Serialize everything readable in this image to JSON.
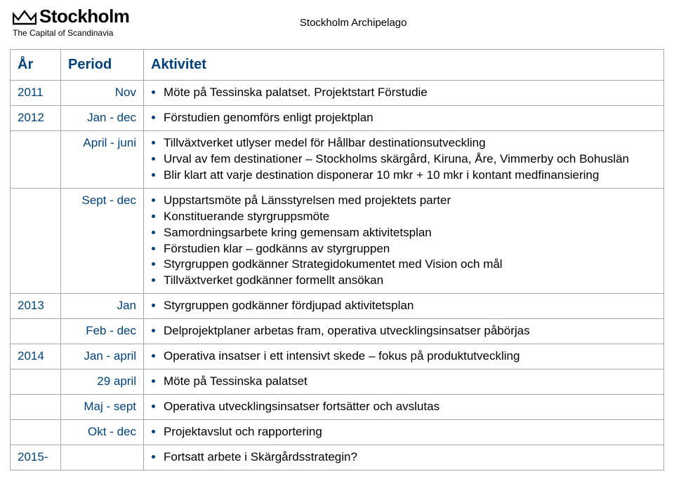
{
  "logo": {
    "word": "Stockholm",
    "tagline": "The Capital of Scandinavia"
  },
  "pageTitle": "Stockholm Archipelago",
  "colors": {
    "brand": "#00417a",
    "text": "#000000",
    "border": "#a8a8a8"
  },
  "table": {
    "headers": {
      "year": "År",
      "period": "Period",
      "activity": "Aktivitet"
    },
    "rows": [
      {
        "year": "2011",
        "period": "Nov",
        "items": [
          "Möte på Tessinska palatset. Projektstart Förstudie"
        ]
      },
      {
        "year": "2012",
        "period": "Jan - dec",
        "items": [
          "Förstudien genomförs enligt projektplan"
        ]
      },
      {
        "year": "",
        "period": "April - juni",
        "items": [
          "Tillväxtverket utlyser medel för Hållbar destinationsutveckling",
          "Urval av fem destinationer – Stockholms skärgård, Kiruna, Åre, Vimmerby och Bohuslän",
          "Blir klart att varje destination disponerar 10 mkr + 10 mkr i kontant medfinansiering"
        ]
      },
      {
        "year": "",
        "period": "Sept - dec",
        "items": [
          "Uppstartsmöte på Länsstyrelsen med projektets parter",
          "Konstituerande styrgruppsmöte",
          "Samordningsarbete kring gemensam aktivitetsplan",
          "Förstudien klar – godkänns av styrgruppen",
          "Styrgruppen godkänner Strategidokumentet med Vision och mål",
          "Tillväxtverket godkänner formellt ansökan"
        ]
      },
      {
        "year": "2013",
        "period": "Jan",
        "items": [
          "Styrgruppen godkänner fördjupad aktivitetsplan"
        ]
      },
      {
        "year": "",
        "period": "Feb - dec",
        "items": [
          "Delprojektplaner arbetas fram, operativa utvecklingsinsatser påbörjas"
        ]
      },
      {
        "year": "2014",
        "period": "Jan - april",
        "items": [
          "Operativa insatser i ett intensivt skede – fokus på produktutveckling"
        ]
      },
      {
        "year": "",
        "period": "29 april",
        "items": [
          "Möte på Tessinska palatset"
        ]
      },
      {
        "year": "",
        "period": "Maj - sept",
        "items": [
          "Operativa utvecklingsinsatser fortsätter och avslutas"
        ]
      },
      {
        "year": "",
        "period": "Okt - dec",
        "items": [
          "Projektavslut och rapportering"
        ]
      },
      {
        "year": "2015-",
        "period": "",
        "items": [
          "Fortsatt arbete i Skärgårdsstrategin?"
        ]
      }
    ]
  }
}
